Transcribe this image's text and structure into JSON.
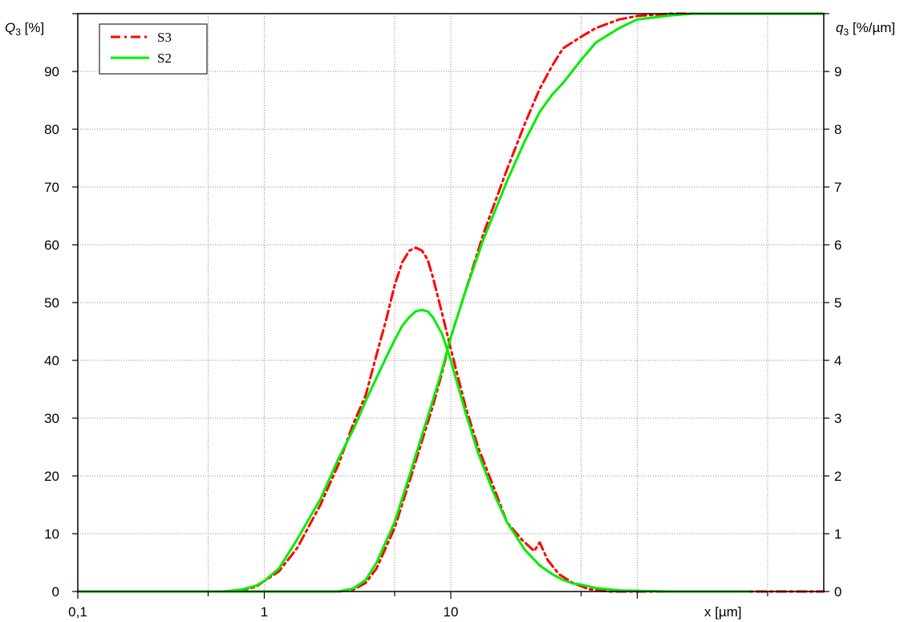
{
  "chart_data": {
    "type": "line",
    "x_scale": "log",
    "xlim": [
      0.1,
      1000
    ],
    "ylim_left": [
      0,
      100
    ],
    "ylim_right": [
      0,
      10
    ],
    "grid": true,
    "legend_position": "top-left",
    "left_axis_label": {
      "main": "Q",
      "sub": "3",
      "rest": " [%]"
    },
    "right_axis_label": {
      "main": "q",
      "sub": "3",
      "rest": " [%/µm]"
    },
    "x_axis_label": "x [µm]",
    "x_tick_labels": [
      {
        "x": 0.1,
        "label": "0,1"
      },
      {
        "x": 1,
        "label": "1"
      },
      {
        "x": 10,
        "label": "10"
      }
    ],
    "y_tick_labels_left": [
      "0",
      "10",
      "20",
      "30",
      "40",
      "50",
      "60",
      "70",
      "80",
      "90"
    ],
    "y_tick_labels_right": [
      "0",
      "1",
      "2",
      "3",
      "4",
      "5",
      "6",
      "7",
      "8",
      "9"
    ],
    "series": [
      {
        "name": "S3",
        "color": "#ff0000",
        "style": "dash-dot",
        "cumulative_Q3": {
          "x": [
            0.1,
            0.7,
            1.5,
            2.5,
            3.0,
            3.5,
            4.0,
            5.0,
            6.0,
            7.0,
            8.0,
            9.0,
            10,
            12,
            15,
            20,
            25,
            30,
            35,
            40,
            50,
            60,
            80,
            100,
            150,
            200,
            1000
          ],
          "y": [
            0,
            0,
            0,
            0,
            0.3,
            1.5,
            4,
            11,
            19,
            26,
            32,
            38,
            44,
            52,
            62,
            73,
            81,
            87,
            91,
            94,
            96,
            97.5,
            99,
            99.6,
            100,
            100,
            100
          ]
        },
        "density_q3": {
          "x": [
            0.1,
            0.6,
            0.75,
            0.9,
            1.0,
            1.2,
            1.5,
            2.0,
            2.5,
            3.0,
            3.5,
            4.0,
            4.5,
            5.0,
            5.5,
            6.0,
            6.5,
            7.0,
            7.5,
            8.0,
            9.0,
            10,
            12,
            14,
            17,
            20,
            24,
            28,
            30,
            33,
            38,
            45,
            55,
            70,
            1000
          ],
          "y": [
            0,
            0,
            0.02,
            0.08,
            0.18,
            0.35,
            0.75,
            1.5,
            2.2,
            2.9,
            3.4,
            4.1,
            4.7,
            5.3,
            5.7,
            5.9,
            5.95,
            5.9,
            5.75,
            5.45,
            4.8,
            4.2,
            3.2,
            2.5,
            1.8,
            1.2,
            0.9,
            0.7,
            0.85,
            0.55,
            0.3,
            0.15,
            0.04,
            0,
            0
          ]
        }
      },
      {
        "name": "S2",
        "color": "#00ee00",
        "style": "solid",
        "cumulative_Q3": {
          "x": [
            0.1,
            0.7,
            1.5,
            2.5,
            3.0,
            3.5,
            4.0,
            5.0,
            6.0,
            7.0,
            8.0,
            9.0,
            10,
            12,
            15,
            20,
            25,
            30,
            35,
            40,
            50,
            60,
            80,
            100,
            150,
            200,
            1000
          ],
          "y": [
            0,
            0,
            0,
            0,
            0.5,
            2,
            5,
            12,
            20,
            27,
            33,
            38.5,
            44,
            52,
            61,
            71,
            78,
            83,
            86,
            88,
            92,
            95,
            97.5,
            99,
            99.7,
            100,
            100
          ]
        },
        "density_q3": {
          "x": [
            0.1,
            0.6,
            0.75,
            0.9,
            1.0,
            1.2,
            1.5,
            2.0,
            2.5,
            3.0,
            3.5,
            4.0,
            4.5,
            5.0,
            5.5,
            6.0,
            6.5,
            7.0,
            7.5,
            8.0,
            9.0,
            10,
            12,
            14,
            17,
            20,
            25,
            30,
            35,
            40,
            45,
            50,
            60,
            80,
            150,
            400
          ],
          "y": [
            0,
            0,
            0.03,
            0.1,
            0.18,
            0.4,
            0.9,
            1.6,
            2.3,
            2.8,
            3.3,
            3.7,
            4.05,
            4.35,
            4.6,
            4.75,
            4.85,
            4.87,
            4.85,
            4.75,
            4.45,
            4.0,
            3.1,
            2.4,
            1.7,
            1.2,
            0.72,
            0.45,
            0.3,
            0.2,
            0.14,
            0.12,
            0.06,
            0.02,
            0,
            0
          ]
        }
      }
    ]
  }
}
